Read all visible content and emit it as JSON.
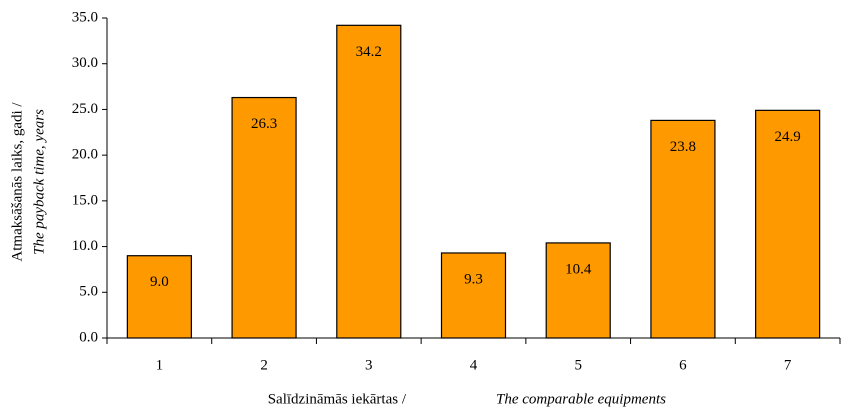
{
  "chart_data": {
    "type": "bar",
    "ylabel": "Atmaksāšanās laiks, gadi /",
    "ylabel_italic": "The payback time, years",
    "xlabel": "Salīdzināmās iekārtas /",
    "xlabel_italic": "The comparable equipments",
    "categories": [
      "1",
      "2",
      "3",
      "4",
      "5",
      "6",
      "7"
    ],
    "values": [
      9.0,
      26.3,
      34.2,
      9.3,
      10.4,
      23.8,
      24.9
    ],
    "value_labels": [
      "9.0",
      "26.3",
      "34.2",
      "9.3",
      "10.4",
      "23.8",
      "24.9"
    ],
    "color": "#ff9900",
    "ylim": [
      0,
      35
    ],
    "yticks": [
      {
        "value": 0,
        "label": "0.0"
      },
      {
        "value": 5,
        "label": "5.0"
      },
      {
        "value": 10,
        "label": "10.0"
      },
      {
        "value": 15,
        "label": "15.0"
      },
      {
        "value": 20,
        "label": "20.0"
      },
      {
        "value": 25,
        "label": "25.0"
      },
      {
        "value": 30,
        "label": "30.0"
      },
      {
        "value": 35,
        "label": "35.0"
      }
    ],
    "grid": false
  }
}
